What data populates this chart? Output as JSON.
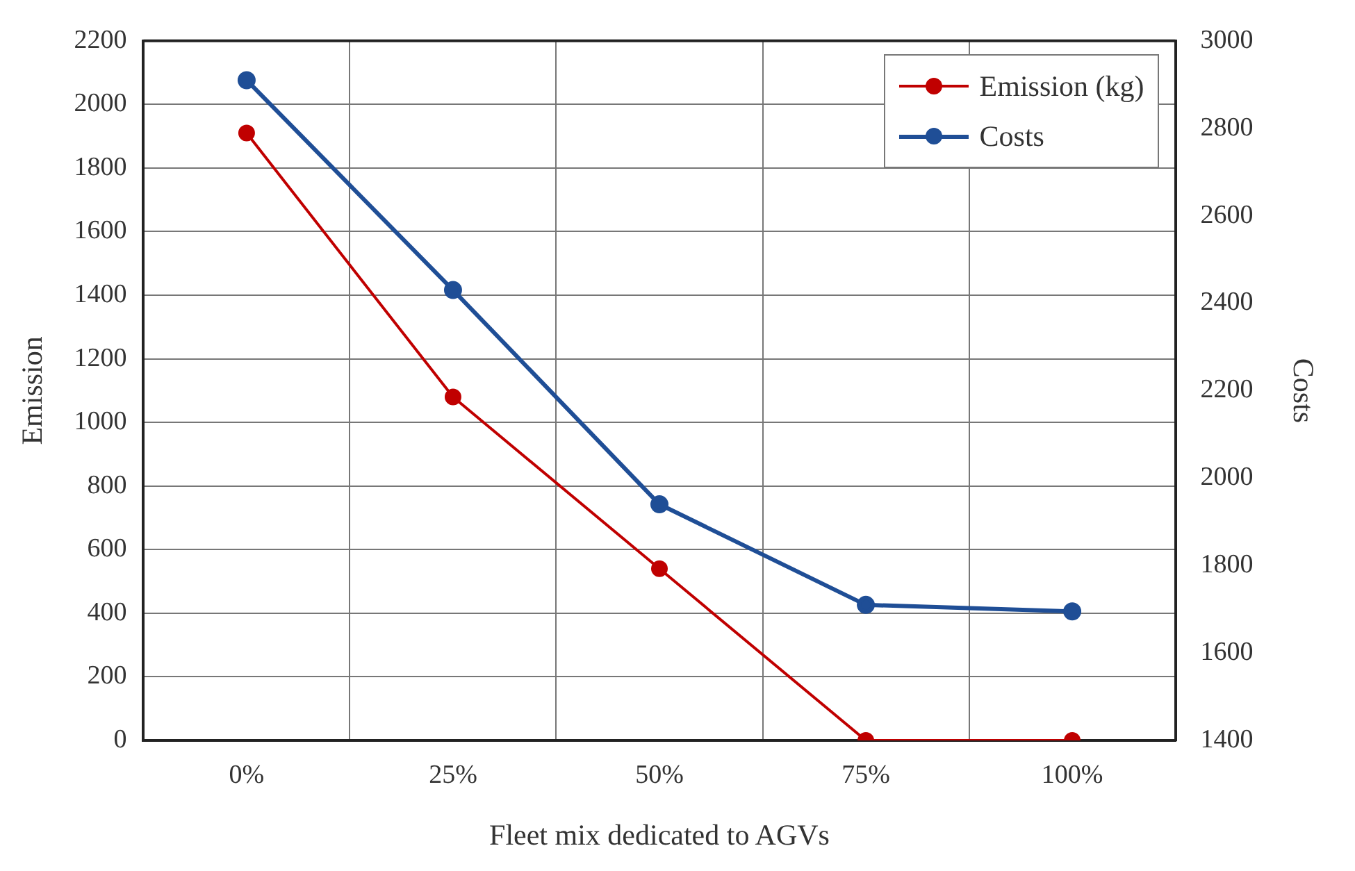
{
  "chart_data": {
    "type": "line",
    "xlabel": "Fleet mix dedicated to AGVs",
    "ylabel": "Emission",
    "y2label": "Costs",
    "categories": [
      "0%",
      "25%",
      "50%",
      "75%",
      "100%"
    ],
    "series": [
      {
        "name": "Emission (kg)",
        "color": "#c00000",
        "values": [
          1910,
          1080,
          540,
          0,
          0
        ]
      },
      {
        "name": "Costs",
        "color": "#1f4e96",
        "axis": "y2",
        "values": [
          2910,
          2430,
          1940,
          1710,
          1695
        ]
      }
    ],
    "ylim": [
      0,
      2200
    ],
    "yticks": [
      0,
      200,
      400,
      600,
      800,
      1000,
      1200,
      1400,
      1600,
      1800,
      2000,
      2200
    ],
    "y2lim": [
      1400,
      3000
    ],
    "y2ticks": [
      1400,
      1600,
      1800,
      2000,
      2200,
      2400,
      2600,
      2800,
      3000
    ],
    "grid": true,
    "legend": "top right",
    "marker": "circle",
    "line_style": "solid"
  }
}
